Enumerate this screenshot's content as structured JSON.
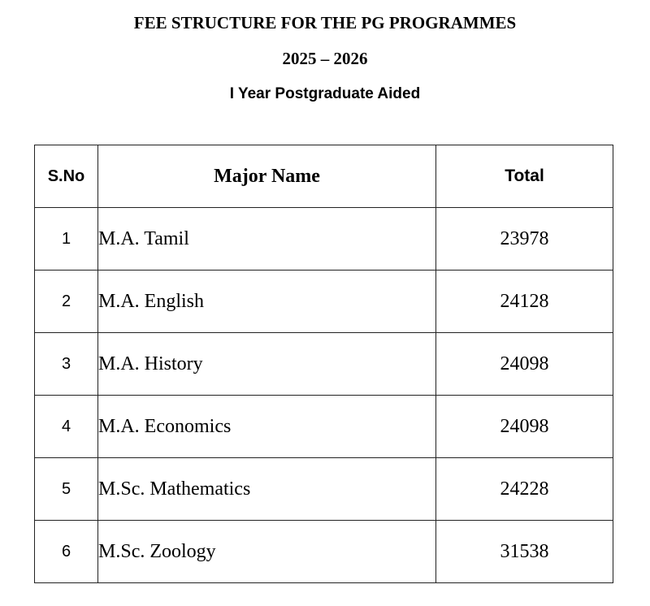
{
  "title": "FEE STRUCTURE FOR THE PG PROGRAMMES",
  "year": "2025 – 2026",
  "subtitle": "I Year Postgraduate Aided",
  "table": {
    "headers": [
      "S.No",
      "Major Name",
      "Total"
    ],
    "rows": [
      [
        "1",
        "M.A. Tamil",
        "23978"
      ],
      [
        "2",
        "M.A. English",
        "24128"
      ],
      [
        "3",
        "M.A. History",
        "24098"
      ],
      [
        "4",
        "M.A. Economics",
        "24098"
      ],
      [
        "5",
        "M.Sc. Mathematics",
        "24228"
      ],
      [
        "6",
        "M.Sc. Zoology",
        "31538"
      ]
    ]
  }
}
